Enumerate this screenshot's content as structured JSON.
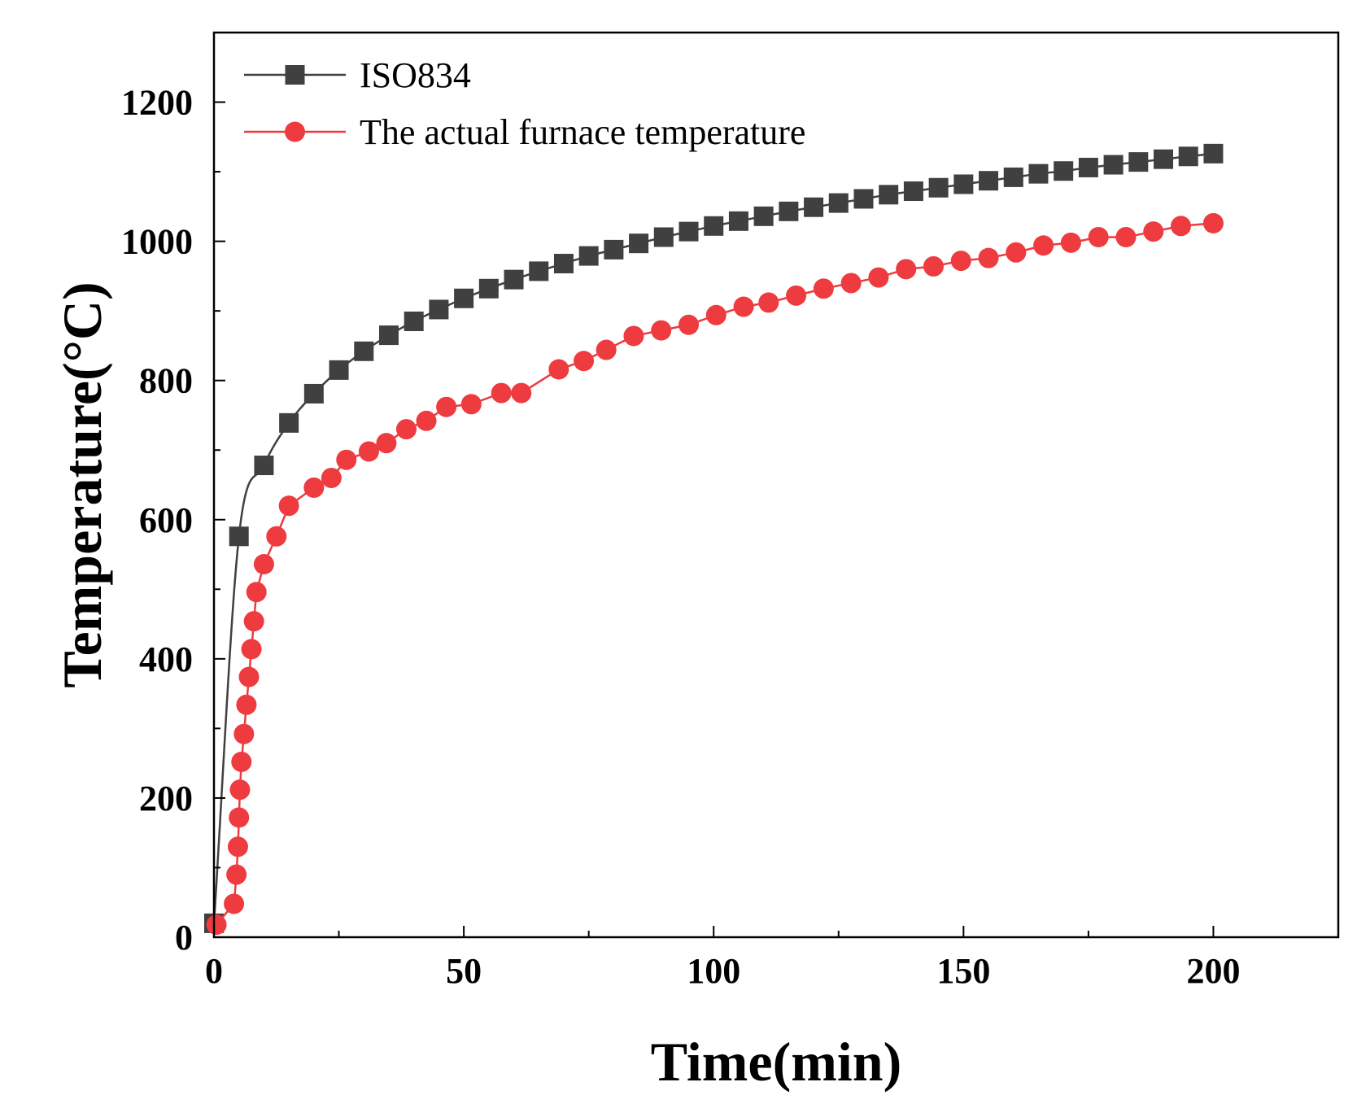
{
  "chart_data": {
    "type": "line",
    "title": "",
    "xlabel": "Time(min)",
    "ylabel": "Temperature(°C)",
    "xlim": [
      0,
      225
    ],
    "ylim": [
      0,
      1300
    ],
    "xticks": [
      0,
      50,
      100,
      150,
      200
    ],
    "yticks": [
      0,
      200,
      400,
      600,
      800,
      1000,
      1200
    ],
    "x_minor_step": 25,
    "y_minor_step": 100,
    "grid": false,
    "legend_position": "top-left",
    "series": [
      {
        "name": "ISO834",
        "color": "#404040",
        "marker": "square",
        "curve": "smooth",
        "x": [
          0,
          5,
          10,
          15,
          20,
          25,
          30,
          35,
          40,
          45,
          50,
          55,
          60,
          65,
          70,
          75,
          80,
          85,
          90,
          95,
          100,
          105,
          110,
          115,
          120,
          125,
          130,
          135,
          140,
          145,
          150,
          155,
          160,
          165,
          170,
          175,
          180,
          185,
          190,
          195,
          200
        ],
        "y": [
          20,
          576,
          678,
          739,
          781,
          815,
          842,
          865,
          885,
          902,
          918,
          932,
          945,
          957,
          968,
          979,
          988,
          997,
          1006,
          1014,
          1022,
          1029,
          1036,
          1043,
          1049,
          1055,
          1061,
          1067,
          1072,
          1077,
          1082,
          1087,
          1092,
          1097,
          1101,
          1106,
          1110,
          1114,
          1118,
          1122,
          1126
        ]
      },
      {
        "name": "The actual furnace temperature",
        "color": "#ee3b3f",
        "marker": "circle",
        "curve": "linear",
        "x": [
          0.5,
          4,
          4.5,
          4.8,
          5,
          5.2,
          5.5,
          6,
          6.5,
          7,
          7.5,
          8,
          8.5,
          10,
          12.5,
          15,
          20,
          23.5,
          26.5,
          31,
          34.5,
          38.5,
          42.5,
          46.5,
          51.5,
          57.5,
          61.5,
          69,
          74,
          78.5,
          84,
          89.5,
          95,
          100.5,
          106,
          111,
          116.5,
          122,
          127.5,
          133,
          138.5,
          144,
          149.5,
          155,
          160.5,
          166,
          171.5,
          177,
          182.5,
          188,
          193.5,
          200
        ],
        "y": [
          18,
          48,
          90,
          130,
          172,
          212,
          252,
          292,
          334,
          374,
          414,
          454,
          496,
          536,
          576,
          620,
          646,
          660,
          686,
          698,
          710,
          730,
          742,
          762,
          766,
          782,
          782,
          816,
          828,
          844,
          864,
          872,
          880,
          894,
          906,
          912,
          922,
          932,
          940,
          948,
          960,
          964,
          972,
          976,
          984,
          994,
          998,
          1006,
          1006,
          1014,
          1022,
          1026
        ]
      }
    ]
  }
}
